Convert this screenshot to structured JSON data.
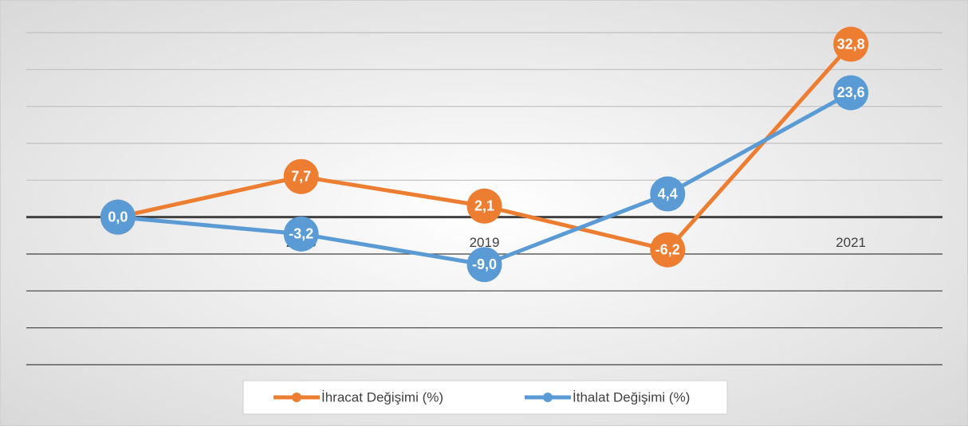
{
  "chart_data": {
    "type": "line",
    "categories": [
      null,
      "2018",
      "2019",
      "2020",
      "2021"
    ],
    "series": [
      {
        "name": "İhracat Değişimi (%)",
        "color": "#ed7d31",
        "values": [
          0,
          7.7,
          2.1,
          -6.2,
          32.8
        ],
        "value_labels": [
          "0,0",
          "7,7",
          "2,1",
          "-6,2",
          "32,8"
        ]
      },
      {
        "name": "İthalat Değişimi (%)",
        "color": "#5b9bd5",
        "values": [
          0,
          -3.2,
          -9.0,
          4.4,
          23.6
        ],
        "value_labels": [
          "0,0",
          "-3,2",
          "-9,0",
          "4,4",
          "23,6"
        ]
      }
    ],
    "ylim": [
      -28,
      35
    ],
    "yticks": [
      -28,
      -21,
      -14,
      -7,
      0,
      7,
      14,
      21,
      28,
      35
    ],
    "grid": true,
    "legend": "bottom"
  }
}
